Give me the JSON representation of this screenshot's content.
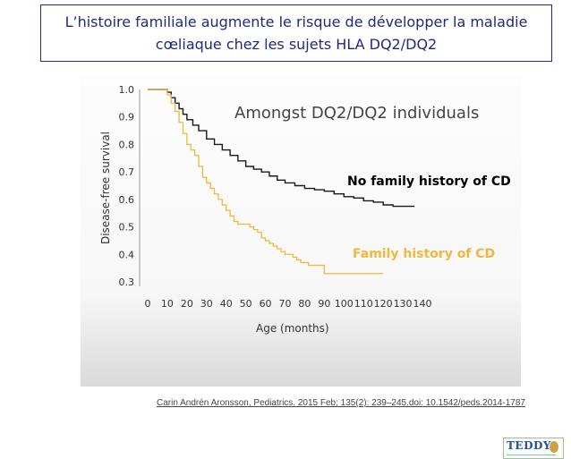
{
  "title": {
    "line1": "L’histoire familiale augmente le risque de développer la maladie",
    "line2": "cœliaque chez les sujets HLA DQ2/DQ2"
  },
  "chart_data": {
    "type": "line",
    "title": "Amongst DQ2/DQ2 individuals",
    "xlabel": "Age (months)",
    "ylabel": "Disease-free survival",
    "x_ticks": [
      0,
      10,
      20,
      30,
      40,
      50,
      60,
      70,
      80,
      90,
      100,
      110,
      120,
      130,
      140
    ],
    "y_ticks": [
      "0.3",
      "0.4",
      "0.5",
      "0.6",
      "0.7",
      "0.8",
      "0.9",
      "1.0"
    ],
    "xlim": [
      0,
      140
    ],
    "ylim": [
      0.3,
      1.0
    ],
    "grid": false,
    "colors": {
      "no_family": "#1a1a1a",
      "family": "#f0b840"
    },
    "series": [
      {
        "name": "No family history of CD",
        "label_color": "#000000",
        "points": [
          [
            0,
            1.0
          ],
          [
            5,
            1.0
          ],
          [
            8,
            1.0
          ],
          [
            10,
            0.99
          ],
          [
            12,
            0.97
          ],
          [
            14,
            0.95
          ],
          [
            16,
            0.93
          ],
          [
            18,
            0.91
          ],
          [
            20,
            0.89
          ],
          [
            23,
            0.87
          ],
          [
            26,
            0.85
          ],
          [
            30,
            0.82
          ],
          [
            34,
            0.8
          ],
          [
            38,
            0.78
          ],
          [
            42,
            0.76
          ],
          [
            46,
            0.74
          ],
          [
            50,
            0.72
          ],
          [
            54,
            0.71
          ],
          [
            58,
            0.7
          ],
          [
            62,
            0.685
          ],
          [
            66,
            0.67
          ],
          [
            70,
            0.66
          ],
          [
            75,
            0.65
          ],
          [
            80,
            0.64
          ],
          [
            85,
            0.635
          ],
          [
            90,
            0.63
          ],
          [
            95,
            0.62
          ],
          [
            100,
            0.61
          ],
          [
            105,
            0.605
          ],
          [
            110,
            0.595
          ],
          [
            115,
            0.59
          ],
          [
            120,
            0.58
          ],
          [
            125,
            0.575
          ],
          [
            130,
            0.575
          ],
          [
            136,
            0.575
          ]
        ]
      },
      {
        "name": "Family history of CD",
        "label_color": "#f0b840",
        "points": [
          [
            0,
            1.0
          ],
          [
            7,
            1.0
          ],
          [
            10,
            0.98
          ],
          [
            12,
            0.95
          ],
          [
            14,
            0.92
          ],
          [
            16,
            0.88
          ],
          [
            18,
            0.84
          ],
          [
            20,
            0.8
          ],
          [
            22,
            0.78
          ],
          [
            24,
            0.76
          ],
          [
            26,
            0.72
          ],
          [
            28,
            0.68
          ],
          [
            30,
            0.66
          ],
          [
            32,
            0.64
          ],
          [
            34,
            0.62
          ],
          [
            36,
            0.6
          ],
          [
            38,
            0.58
          ],
          [
            40,
            0.56
          ],
          [
            42,
            0.54
          ],
          [
            44,
            0.52
          ],
          [
            46,
            0.51
          ],
          [
            50,
            0.51
          ],
          [
            52,
            0.5
          ],
          [
            54,
            0.49
          ],
          [
            56,
            0.48
          ],
          [
            58,
            0.46
          ],
          [
            60,
            0.45
          ],
          [
            62,
            0.44
          ],
          [
            64,
            0.43
          ],
          [
            66,
            0.42
          ],
          [
            68,
            0.41
          ],
          [
            70,
            0.4
          ],
          [
            74,
            0.39
          ],
          [
            76,
            0.38
          ],
          [
            78,
            0.37
          ],
          [
            82,
            0.36
          ],
          [
            88,
            0.36
          ],
          [
            90,
            0.33
          ],
          [
            100,
            0.33
          ],
          [
            110,
            0.33
          ],
          [
            120,
            0.33
          ]
        ]
      }
    ]
  },
  "logo": {
    "word": "TEDDY"
  },
  "citation": "Carin Andrén Aronsson, Pediatrics. 2015 Feb; 135(2): 239–245.doi:  10.1542/peds.2014-1787"
}
